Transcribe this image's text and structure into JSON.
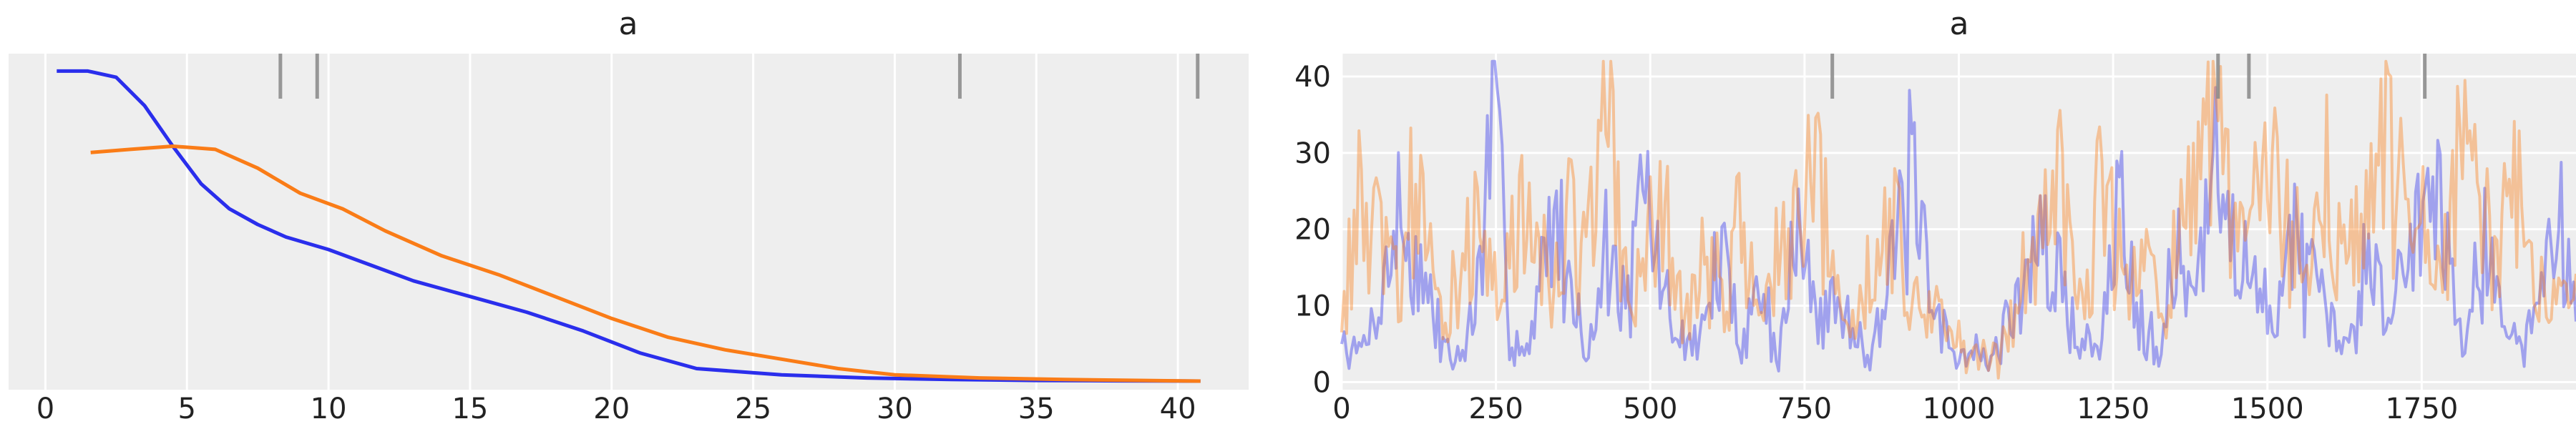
{
  "chart_data": [
    {
      "type": "line",
      "title": "a",
      "xlabel": "",
      "ylabel": "",
      "xlim": [
        -1.3,
        42.5
      ],
      "xticks": [
        0,
        5,
        10,
        15,
        20,
        25,
        30,
        35,
        40
      ],
      "grid": true,
      "series": [
        {
          "color": "#2a2eec",
          "x": [
            0.4,
            1.5,
            2.5,
            3.5,
            4.5,
            5.5,
            6.5,
            7.5,
            8.5,
            10,
            11.5,
            13,
            15,
            17,
            19,
            21,
            23,
            26,
            29,
            32,
            35,
            38,
            40.8
          ],
          "y": [
            0.99,
            0.99,
            0.97,
            0.88,
            0.75,
            0.63,
            0.55,
            0.5,
            0.46,
            0.42,
            0.37,
            0.32,
            0.27,
            0.22,
            0.16,
            0.09,
            0.04,
            0.02,
            0.01,
            0.005,
            0.002,
            0.001,
            0.0
          ]
        },
        {
          "color": "#fa7c17",
          "x": [
            1.6,
            3.0,
            4.5,
            6.0,
            7.5,
            9.0,
            10.5,
            12.0,
            14.0,
            16.0,
            18.0,
            20.0,
            22.0,
            24.0,
            26.0,
            28.0,
            30.0,
            33.0,
            36.0,
            40.8
          ],
          "y": [
            0.73,
            0.74,
            0.75,
            0.74,
            0.68,
            0.6,
            0.55,
            0.48,
            0.4,
            0.34,
            0.27,
            0.2,
            0.14,
            0.1,
            0.07,
            0.04,
            0.02,
            0.01,
            0.005,
            0.0
          ]
        }
      ],
      "divergences": [
        8.3,
        9.6,
        32.3,
        40.7
      ]
    },
    {
      "type": "line",
      "title": "a",
      "xlabel": "",
      "ylabel": "",
      "xlim": [
        0,
        2000
      ],
      "ylim": [
        -1,
        43
      ],
      "xticks": [
        0,
        250,
        500,
        750,
        1000,
        1250,
        1500,
        1750
      ],
      "yticks": [
        0,
        10,
        20,
        30,
        40
      ],
      "grid": true,
      "n_draws": 2000,
      "series": [
        {
          "color": "#2a2eec",
          "opacity": 0.4,
          "anchors": [
            5,
            4,
            12,
            24,
            16,
            8,
            3,
            9,
            38,
            5,
            6,
            25,
            15,
            4,
            20,
            10,
            28,
            12,
            5,
            8,
            18,
            6,
            14,
            4,
            22,
            9,
            12,
            7,
            6,
            16,
            30,
            10,
            6,
            4,
            3,
            8,
            15,
            20,
            12,
            6,
            5,
            28,
            10,
            6,
            18,
            12,
            30,
            22,
            14,
            8,
            24,
            14,
            8,
            4,
            20,
            10,
            16,
            30,
            25,
            8,
            20,
            12,
            5,
            10,
            26,
            8
          ],
          "seed": 7
        },
        {
          "color": "#fa7c17",
          "opacity": 0.4,
          "anchors": [
            10,
            26,
            20,
            14,
            30,
            8,
            16,
            22,
            12,
            18,
            28,
            10,
            24,
            20,
            38,
            12,
            18,
            24,
            9,
            16,
            14,
            22,
            10,
            18,
            20,
            30,
            12,
            8,
            20,
            25,
            10,
            14,
            6,
            4,
            3,
            6,
            16,
            22,
            33,
            12,
            28,
            16,
            22,
            10,
            18,
            26,
            38,
            20,
            24,
            30,
            20,
            18,
            28,
            16,
            26,
            34,
            24,
            20,
            14,
            36,
            22,
            18,
            28,
            12,
            16,
            14
          ],
          "seed": 13
        }
      ],
      "divergences": [
        795,
        1420,
        1470,
        1755
      ]
    }
  ]
}
